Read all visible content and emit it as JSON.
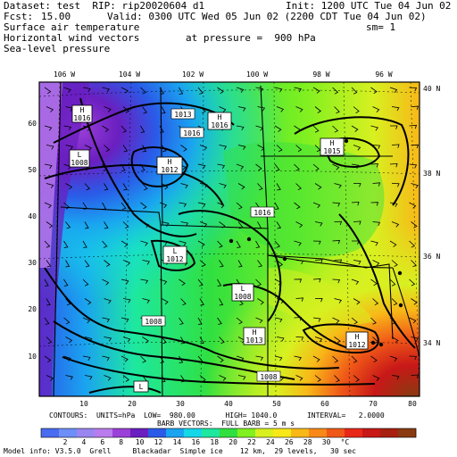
{
  "header": {
    "dataset": "Dataset: test  RIP: rip20020604 d1",
    "init": "Init: 1200 UTC Tue 04 Jun 02",
    "fcst_label": "Fcst:",
    "fcst_value": "15.00",
    "valid": "Valid: 0300 UTC Wed 05 Jun 02 (2200 CDT Tue 04 Jun 02)",
    "field1": "Surface air temperature",
    "sm": "sm= 1",
    "field2": "Horizontal wind vectors",
    "pressure": "at pressure =  900 hPa",
    "field3": "Sea-level pressure"
  },
  "map": {
    "lon_labels": [
      "106 W",
      "104 W",
      "102 W",
      "100 W",
      "98 W",
      "96 W"
    ],
    "lat_labels": [
      "40 N",
      "38 N",
      "36 N",
      "34 N"
    ],
    "grid_x_labels": [
      "10",
      "20",
      "30",
      "40",
      "50",
      "60",
      "70",
      "80"
    ],
    "grid_y_labels": [
      "60",
      "50",
      "40",
      "30",
      "20",
      "10"
    ],
    "pressure_centers": [
      {
        "type": "H",
        "value": "1016"
      },
      {
        "type": "H",
        "value": "1016"
      },
      {
        "type": "H",
        "value": "1015"
      },
      {
        "type": "H",
        "value": "1012"
      },
      {
        "type": "L",
        "value": "1008"
      },
      {
        "type": "L",
        "value": "1012"
      },
      {
        "type": "H",
        "value": "1013"
      },
      {
        "type": "H",
        "value": "1012"
      },
      {
        "type": "L",
        "value": "1008"
      },
      {
        "type": "L",
        "value": "1008"
      }
    ],
    "contour_labels": [
      "1013",
      "1016",
      "1016",
      "1008",
      "1008"
    ]
  },
  "footer": {
    "contours": "CONTOURS:  UNITS=hPa  LOW=  980.00       HIGH= 1040.0       INTERVAL=   2.0000",
    "barbs": "BARB VECTORS:  FULL BARB = 5 m s",
    "model_info": "Model info: V3.5.0  Grell     Blackadar  Simple ice    12 km,  29 levels,   30 sec"
  },
  "colorbar": {
    "labels": [
      "2",
      "4",
      "6",
      "8",
      "10",
      "12",
      "14",
      "16",
      "18",
      "20",
      "22",
      "24",
      "26",
      "28",
      "30",
      "°C"
    ],
    "colors": [
      "#4a6cf0",
      "#6e8ef8",
      "#9a86f0",
      "#b97cec",
      "#9b40d8",
      "#6a1fc0",
      "#2a5be8",
      "#1aa3f0",
      "#14d8e8",
      "#1ee8a0",
      "#30e040",
      "#80f020",
      "#d8f020",
      "#f8e818",
      "#f8b818",
      "#f88818",
      "#f05818",
      "#e82818",
      "#c81818",
      "#a82010",
      "#8a3a10"
    ]
  }
}
